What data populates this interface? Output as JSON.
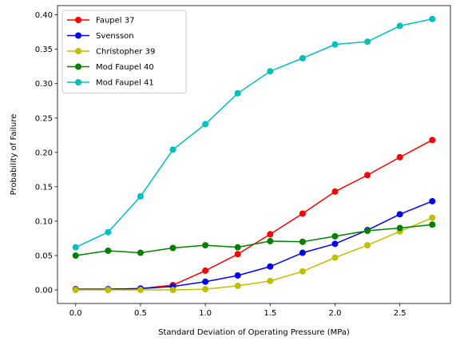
{
  "chart_data": {
    "type": "line",
    "title": "",
    "xlabel": "Standard Deviation of Operating Pressure (MPa)",
    "ylabel": "Probability of Failure",
    "xlim": [
      -0.14,
      2.89
    ],
    "ylim": [
      -0.0197,
      0.4135
    ],
    "xticks": [
      0.0,
      0.5,
      1.0,
      1.5,
      2.0,
      2.5
    ],
    "xtick_labels": [
      "0.0",
      "0.5",
      "1.0",
      "1.5",
      "2.0",
      "2.5"
    ],
    "yticks": [
      0.0,
      0.05,
      0.1,
      0.15,
      0.2,
      0.25,
      0.3,
      0.35,
      0.4
    ],
    "ytick_labels": [
      "0.00",
      "0.05",
      "0.10",
      "0.15",
      "0.20",
      "0.25",
      "0.30",
      "0.35",
      "0.40"
    ],
    "grid": false,
    "legend_position": "top-left",
    "x": [
      0.0,
      0.25,
      0.5,
      0.75,
      1.0,
      1.25,
      1.5,
      1.75,
      2.0,
      2.25,
      2.5,
      2.75
    ],
    "series": [
      {
        "name": "Faupel 37",
        "color": "#ff0000",
        "values": [
          0.001,
          0.001,
          0.002,
          0.007,
          0.028,
          0.052,
          0.081,
          0.111,
          0.143,
          0.167,
          0.193,
          0.218
        ]
      },
      {
        "name": "Svensson",
        "color": "#0000ff",
        "values": [
          0.001,
          0.001,
          0.002,
          0.005,
          0.012,
          0.021,
          0.034,
          0.054,
          0.067,
          0.087,
          0.11,
          0.129
        ]
      },
      {
        "name": "Christopher 39",
        "color": "#bfbf00",
        "values": [
          0.0,
          0.0,
          0.0,
          0.0,
          0.001,
          0.006,
          0.013,
          0.027,
          0.047,
          0.065,
          0.085,
          0.105
        ]
      },
      {
        "name": "Mod Faupel 40",
        "color": "#008000",
        "values": [
          0.05,
          0.057,
          0.054,
          0.061,
          0.065,
          0.062,
          0.071,
          0.07,
          0.078,
          0.086,
          0.09,
          0.095
        ]
      },
      {
        "name": "Mod Faupel 41",
        "color": "#00bfbf",
        "values": [
          0.062,
          0.084,
          0.136,
          0.204,
          0.241,
          0.286,
          0.318,
          0.337,
          0.357,
          0.361,
          0.384,
          0.394
        ]
      }
    ]
  }
}
